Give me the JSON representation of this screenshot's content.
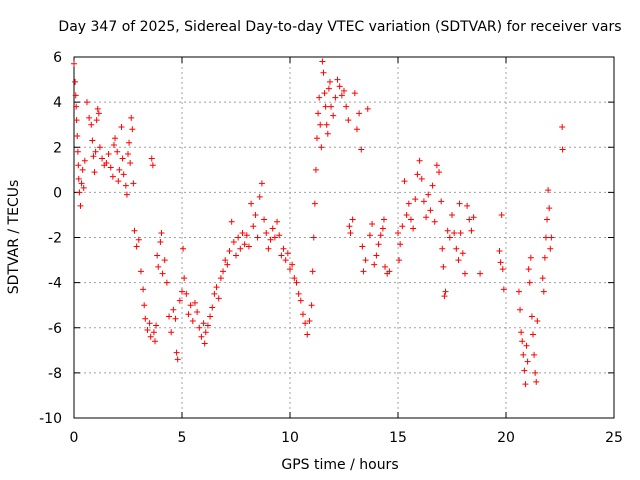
{
  "chart_data": {
    "type": "scatter",
    "title": "Day 347 of 2025, Sidereal Day-to-day VTEC variation (SDTVAR) for receiver vars",
    "xlabel": "GPS time / hours",
    "ylabel": "SDTVAR / TECUs",
    "xlim": [
      0,
      25
    ],
    "ylim": [
      -10,
      6
    ],
    "x_ticks": [
      0,
      5,
      10,
      15,
      20,
      25
    ],
    "x_tick_labels": [
      "0",
      "5",
      "10",
      "15",
      "20",
      "25"
    ],
    "y_ticks": [
      -10,
      -8,
      -6,
      -4,
      -2,
      0,
      2,
      4,
      6
    ],
    "y_tick_labels": [
      "-10",
      "-8",
      "-6",
      "-4",
      "-2",
      "0",
      "2",
      "4",
      "6"
    ],
    "grid": true,
    "marker": "+",
    "marker_color": "#ff0000",
    "series": [
      {
        "name": "SDTVAR",
        "points": [
          [
            0.0,
            5.7
          ],
          [
            0.05,
            4.9
          ],
          [
            0.08,
            4.3
          ],
          [
            0.1,
            3.8
          ],
          [
            0.12,
            3.2
          ],
          [
            0.15,
            2.5
          ],
          [
            0.18,
            1.8
          ],
          [
            0.2,
            1.2
          ],
          [
            0.22,
            0.6
          ],
          [
            0.25,
            0.0
          ],
          [
            0.3,
            -0.6
          ],
          [
            0.35,
            0.4
          ],
          [
            0.4,
            1.0
          ],
          [
            0.45,
            0.2
          ],
          [
            0.5,
            1.4
          ],
          [
            0.6,
            4.0
          ],
          [
            0.7,
            3.3
          ],
          [
            0.8,
            3.0
          ],
          [
            0.85,
            2.3
          ],
          [
            0.9,
            1.6
          ],
          [
            0.95,
            0.9
          ],
          [
            1.0,
            1.8
          ],
          [
            1.05,
            3.2
          ],
          [
            1.1,
            3.7
          ],
          [
            1.15,
            3.5
          ],
          [
            1.2,
            2.0
          ],
          [
            1.3,
            1.5
          ],
          [
            1.4,
            1.2
          ],
          [
            1.5,
            1.3
          ],
          [
            1.6,
            1.7
          ],
          [
            1.7,
            1.1
          ],
          [
            1.8,
            0.7
          ],
          [
            1.85,
            2.1
          ],
          [
            1.9,
            2.4
          ],
          [
            2.0,
            1.8
          ],
          [
            2.05,
            0.5
          ],
          [
            2.1,
            1.0
          ],
          [
            2.2,
            2.9
          ],
          [
            2.25,
            1.5
          ],
          [
            2.3,
            0.8
          ],
          [
            2.4,
            0.3
          ],
          [
            2.45,
            -0.1
          ],
          [
            2.5,
            1.7
          ],
          [
            2.55,
            2.2
          ],
          [
            2.6,
            1.3
          ],
          [
            2.65,
            3.3
          ],
          [
            2.7,
            2.8
          ],
          [
            2.75,
            0.4
          ],
          [
            2.8,
            -1.7
          ],
          [
            2.9,
            -2.4
          ],
          [
            3.0,
            -2.1
          ],
          [
            3.1,
            -3.5
          ],
          [
            3.2,
            -4.3
          ],
          [
            3.25,
            -5.0
          ],
          [
            3.3,
            -5.6
          ],
          [
            3.4,
            -6.1
          ],
          [
            3.5,
            -5.8
          ],
          [
            3.55,
            -6.4
          ],
          [
            3.6,
            1.5
          ],
          [
            3.65,
            1.2
          ],
          [
            3.7,
            -6.2
          ],
          [
            3.75,
            -6.6
          ],
          [
            3.8,
            -5.9
          ],
          [
            3.85,
            -2.8
          ],
          [
            3.9,
            -3.3
          ],
          [
            4.0,
            -2.2
          ],
          [
            4.05,
            -1.8
          ],
          [
            4.1,
            -3.6
          ],
          [
            4.2,
            -3.0
          ],
          [
            4.3,
            -4.0
          ],
          [
            4.4,
            -5.5
          ],
          [
            4.5,
            -6.2
          ],
          [
            4.6,
            -5.2
          ],
          [
            4.7,
            -5.6
          ],
          [
            4.75,
            -7.1
          ],
          [
            4.8,
            -7.4
          ],
          [
            4.9,
            -4.8
          ],
          [
            5.0,
            -4.4
          ],
          [
            5.05,
            -2.5
          ],
          [
            5.1,
            -3.8
          ],
          [
            5.2,
            -4.5
          ],
          [
            5.3,
            -5.4
          ],
          [
            5.4,
            -5.0
          ],
          [
            5.5,
            -5.7
          ],
          [
            5.6,
            -4.9
          ],
          [
            5.7,
            -5.3
          ],
          [
            5.8,
            -6.0
          ],
          [
            5.9,
            -6.4
          ],
          [
            6.0,
            -5.8
          ],
          [
            6.05,
            -6.7
          ],
          [
            6.1,
            -6.2
          ],
          [
            6.2,
            -5.9
          ],
          [
            6.3,
            -5.5
          ],
          [
            6.4,
            -5.1
          ],
          [
            6.5,
            -4.5
          ],
          [
            6.6,
            -4.2
          ],
          [
            6.7,
            -4.7
          ],
          [
            6.8,
            -3.8
          ],
          [
            6.9,
            -3.5
          ],
          [
            7.0,
            -3.0
          ],
          [
            7.1,
            -3.2
          ],
          [
            7.2,
            -2.6
          ],
          [
            7.3,
            -1.3
          ],
          [
            7.4,
            -2.2
          ],
          [
            7.5,
            -2.8
          ],
          [
            7.6,
            -2.0
          ],
          [
            7.7,
            -2.5
          ],
          [
            7.8,
            -1.8
          ],
          [
            7.9,
            -2.3
          ],
          [
            8.0,
            -1.9
          ],
          [
            8.1,
            -2.4
          ],
          [
            8.2,
            -0.5
          ],
          [
            8.3,
            -1.5
          ],
          [
            8.4,
            -1.0
          ],
          [
            8.5,
            -2.0
          ],
          [
            8.6,
            -0.2
          ],
          [
            8.7,
            0.4
          ],
          [
            8.8,
            -1.2
          ],
          [
            8.9,
            -1.8
          ],
          [
            9.0,
            -2.5
          ],
          [
            9.1,
            -2.1
          ],
          [
            9.2,
            -1.6
          ],
          [
            9.3,
            -2.0
          ],
          [
            9.4,
            -1.3
          ],
          [
            9.5,
            -1.9
          ],
          [
            9.6,
            -2.8
          ],
          [
            9.7,
            -2.5
          ],
          [
            9.8,
            -3.0
          ],
          [
            9.9,
            -2.7
          ],
          [
            10.0,
            -3.4
          ],
          [
            10.1,
            -3.2
          ],
          [
            10.2,
            -3.8
          ],
          [
            10.3,
            -4.0
          ],
          [
            10.4,
            -4.5
          ],
          [
            10.5,
            -4.8
          ],
          [
            10.6,
            -5.4
          ],
          [
            10.7,
            -5.8
          ],
          [
            10.8,
            -6.3
          ],
          [
            10.9,
            -5.7
          ],
          [
            11.0,
            -5.0
          ],
          [
            11.05,
            -3.5
          ],
          [
            11.1,
            -2.0
          ],
          [
            11.15,
            -0.5
          ],
          [
            11.2,
            1.0
          ],
          [
            11.25,
            2.4
          ],
          [
            11.3,
            3.5
          ],
          [
            11.35,
            4.2
          ],
          [
            11.4,
            3.0
          ],
          [
            11.45,
            2.0
          ],
          [
            11.5,
            5.8
          ],
          [
            11.55,
            5.3
          ],
          [
            11.6,
            4.4
          ],
          [
            11.65,
            3.8
          ],
          [
            11.7,
            3.0
          ],
          [
            11.75,
            2.6
          ],
          [
            11.8,
            4.6
          ],
          [
            11.85,
            4.9
          ],
          [
            11.9,
            3.8
          ],
          [
            12.0,
            3.4
          ],
          [
            12.1,
            4.2
          ],
          [
            12.2,
            5.0
          ],
          [
            12.3,
            4.7
          ],
          [
            12.4,
            4.3
          ],
          [
            12.5,
            4.5
          ],
          [
            12.6,
            3.8
          ],
          [
            12.7,
            3.2
          ],
          [
            12.75,
            -1.5
          ],
          [
            12.8,
            -1.8
          ],
          [
            12.9,
            -1.2
          ],
          [
            13.0,
            4.4
          ],
          [
            13.1,
            2.8
          ],
          [
            13.2,
            3.5
          ],
          [
            13.3,
            1.9
          ],
          [
            13.35,
            -2.4
          ],
          [
            13.4,
            -3.5
          ],
          [
            13.5,
            -3.0
          ],
          [
            13.6,
            3.7
          ],
          [
            13.7,
            -1.9
          ],
          [
            13.8,
            -1.4
          ],
          [
            13.9,
            -3.2
          ],
          [
            14.0,
            -2.8
          ],
          [
            14.1,
            -2.3
          ],
          [
            14.2,
            -1.9
          ],
          [
            14.3,
            -1.6
          ],
          [
            14.35,
            -1.2
          ],
          [
            14.4,
            -3.3
          ],
          [
            14.5,
            -3.6
          ],
          [
            14.6,
            -3.5
          ],
          [
            15.0,
            -1.8
          ],
          [
            15.05,
            -3.0
          ],
          [
            15.1,
            -2.3
          ],
          [
            15.2,
            -1.5
          ],
          [
            15.3,
            0.5
          ],
          [
            15.4,
            -1.0
          ],
          [
            15.5,
            -0.5
          ],
          [
            15.6,
            -1.2
          ],
          [
            15.7,
            -1.6
          ],
          [
            15.8,
            -0.3
          ],
          [
            15.9,
            0.8
          ],
          [
            16.0,
            1.4
          ],
          [
            16.1,
            0.6
          ],
          [
            16.2,
            -0.4
          ],
          [
            16.3,
            -1.1
          ],
          [
            16.4,
            -0.1
          ],
          [
            16.5,
            -0.8
          ],
          [
            16.6,
            0.3
          ],
          [
            16.7,
            -1.3
          ],
          [
            16.8,
            1.2
          ],
          [
            16.9,
            0.9
          ],
          [
            17.0,
            -0.4
          ],
          [
            17.05,
            -2.5
          ],
          [
            17.1,
            -3.3
          ],
          [
            17.15,
            -4.6
          ],
          [
            17.2,
            -4.4
          ],
          [
            17.3,
            -1.7
          ],
          [
            17.4,
            -2.0
          ],
          [
            17.5,
            -1.0
          ],
          [
            17.6,
            -1.8
          ],
          [
            17.7,
            -2.5
          ],
          [
            17.8,
            -3.0
          ],
          [
            17.85,
            -0.5
          ],
          [
            17.9,
            -1.8
          ],
          [
            18.0,
            -2.7
          ],
          [
            18.1,
            -3.6
          ],
          [
            18.2,
            -0.6
          ],
          [
            18.3,
            -1.2
          ],
          [
            18.4,
            -1.7
          ],
          [
            18.5,
            -1.1
          ],
          [
            18.8,
            -3.6
          ],
          [
            19.7,
            -2.6
          ],
          [
            19.75,
            -3.1
          ],
          [
            19.8,
            -1.0
          ],
          [
            19.85,
            -3.4
          ],
          [
            19.9,
            -4.3
          ],
          [
            20.6,
            -4.4
          ],
          [
            20.65,
            -5.2
          ],
          [
            20.7,
            -6.2
          ],
          [
            20.75,
            -6.6
          ],
          [
            20.8,
            -7.2
          ],
          [
            20.85,
            -7.9
          ],
          [
            20.9,
            -8.5
          ],
          [
            20.95,
            -6.8
          ],
          [
            21.0,
            -7.5
          ],
          [
            21.05,
            -3.4
          ],
          [
            21.1,
            -4.0
          ],
          [
            21.15,
            -2.9
          ],
          [
            21.2,
            -5.5
          ],
          [
            21.25,
            -6.3
          ],
          [
            21.3,
            -7.2
          ],
          [
            21.35,
            -8.0
          ],
          [
            21.4,
            -8.4
          ],
          [
            21.45,
            -5.7
          ],
          [
            21.7,
            -3.8
          ],
          [
            21.75,
            -4.4
          ],
          [
            21.8,
            -2.9
          ],
          [
            21.85,
            -2.0
          ],
          [
            21.9,
            -1.2
          ],
          [
            21.95,
            0.1
          ],
          [
            22.0,
            -0.7
          ],
          [
            22.05,
            -2.5
          ],
          [
            22.1,
            -2.0
          ],
          [
            22.6,
            2.9
          ],
          [
            22.62,
            1.9
          ]
        ]
      }
    ]
  }
}
